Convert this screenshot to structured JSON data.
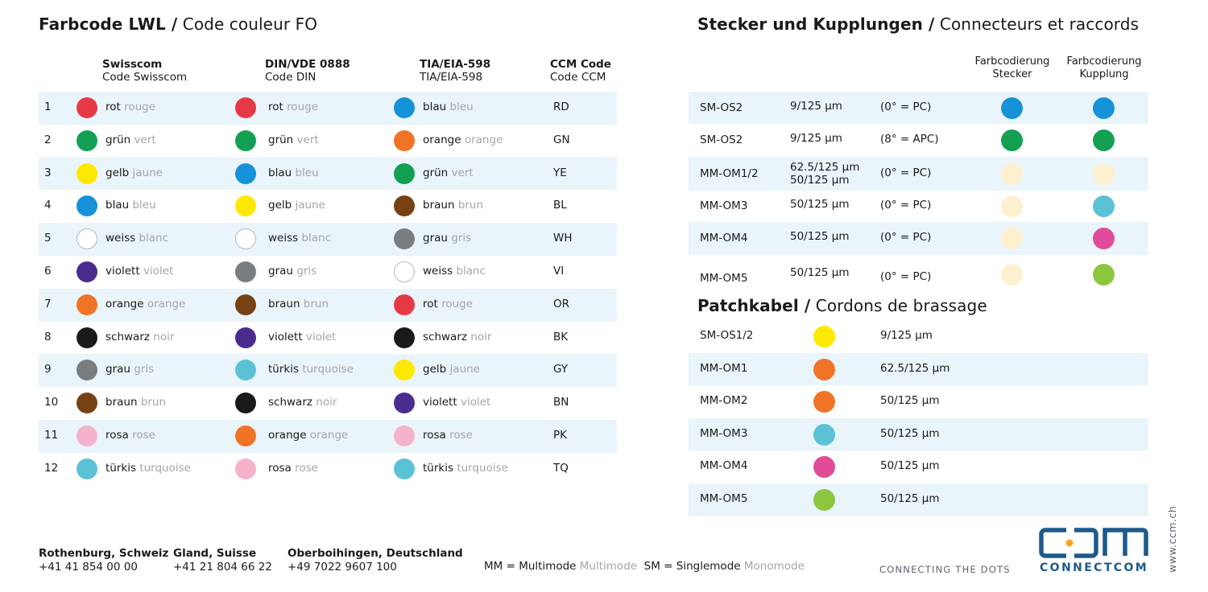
{
  "left_section": {
    "title_bold": "Farbcode LWL /",
    "title_light": "Code couleur FO",
    "headers": [
      {
        "bold": "Swisscom",
        "sub": "Code Swisscom"
      },
      {
        "bold": "DIN/VDE 0888",
        "sub": "Code DIN"
      },
      {
        "bold": "TIA/EIA-598",
        "sub": "TIA/EIA-598"
      },
      {
        "bold": "CCM Code",
        "sub": "Code CCM"
      }
    ],
    "rows": [
      {
        "num": "1",
        "swisscom": {
          "de": "rot",
          "fr": "rouge",
          "color": "#e63946"
        },
        "din": {
          "de": "rot",
          "fr": "rouge",
          "color": "#e63946"
        },
        "tia": {
          "de": "blau",
          "fr": "bleu",
          "color": "#1592d8"
        },
        "ccm": "RD"
      },
      {
        "num": "2",
        "swisscom": {
          "de": "grün",
          "fr": "vert",
          "color": "#13a052"
        },
        "din": {
          "de": "grün",
          "fr": "vert",
          "color": "#13a052"
        },
        "tia": {
          "de": "orange",
          "fr": "orange",
          "color": "#f07326"
        },
        "ccm": "GN"
      },
      {
        "num": "3",
        "swisscom": {
          "de": "gelb",
          "fr": "jaune",
          "color": "#ffe800"
        },
        "din": {
          "de": "blau",
          "fr": "bleu",
          "color": "#1592d8"
        },
        "tia": {
          "de": "grün",
          "fr": "vert",
          "color": "#13a052"
        },
        "ccm": "YE"
      },
      {
        "num": "4",
        "swisscom": {
          "de": "blau",
          "fr": "bleu",
          "color": "#1592d8"
        },
        "din": {
          "de": "gelb",
          "fr": "jaune",
          "color": "#ffe800"
        },
        "tia": {
          "de": "braun",
          "fr": "brun",
          "color": "#774213"
        },
        "ccm": "BL"
      },
      {
        "num": "5",
        "swisscom": {
          "de": "weiss",
          "fr": "blanc",
          "color": "#ffffff"
        },
        "din": {
          "de": "weiss",
          "fr": "blanc",
          "color": "#ffffff"
        },
        "tia": {
          "de": "grau",
          "fr": "gris",
          "color": "#7a7d80"
        },
        "ccm": "WH"
      },
      {
        "num": "6",
        "swisscom": {
          "de": "violett",
          "fr": "violet",
          "color": "#4a2c8f"
        },
        "din": {
          "de": "grau",
          "fr": "gris",
          "color": "#7a7d80"
        },
        "tia": {
          "de": "weiss",
          "fr": "blanc",
          "color": "#ffffff"
        },
        "ccm": "VI"
      },
      {
        "num": "7",
        "swisscom": {
          "de": "orange",
          "fr": "orange",
          "color": "#f07326"
        },
        "din": {
          "de": "braun",
          "fr": "brun",
          "color": "#774213"
        },
        "tia": {
          "de": "rot",
          "fr": "rouge",
          "color": "#e63946"
        },
        "ccm": "OR"
      },
      {
        "num": "8",
        "swisscom": {
          "de": "schwarz",
          "fr": "noir",
          "color": "#1a1a1a"
        },
        "din": {
          "de": "violett",
          "fr": "violet",
          "color": "#4a2c8f"
        },
        "tia": {
          "de": "schwarz",
          "fr": "noir",
          "color": "#1a1a1a"
        },
        "ccm": "BK"
      },
      {
        "num": "9",
        "swisscom": {
          "de": "grau",
          "fr": "gris",
          "color": "#7a7d80"
        },
        "din": {
          "de": "türkis",
          "fr": "turquoise",
          "color": "#5bc2d6"
        },
        "tia": {
          "de": "gelb",
          "fr": "jaune",
          "color": "#ffe800"
        },
        "ccm": "GY"
      },
      {
        "num": "10",
        "swisscom": {
          "de": "braun",
          "fr": "brun",
          "color": "#774213"
        },
        "din": {
          "de": "schwarz",
          "fr": "noir",
          "color": "#1a1a1a"
        },
        "tia": {
          "de": "violett",
          "fr": "violet",
          "color": "#4a2c8f"
        },
        "ccm": "BN"
      },
      {
        "num": "11",
        "swisscom": {
          "de": "rosa",
          "fr": "rose",
          "color": "#f5b2cd"
        },
        "din": {
          "de": "orange",
          "fr": "orange",
          "color": "#f07326"
        },
        "tia": {
          "de": "rosa",
          "fr": "rose",
          "color": "#f5b2cd"
        },
        "ccm": "PK"
      },
      {
        "num": "12",
        "swisscom": {
          "de": "türkis",
          "fr": "turquoise",
          "color": "#5bc2d6"
        },
        "din": {
          "de": "rosa",
          "fr": "rose",
          "color": "#f5b2cd"
        },
        "tia": {
          "de": "türkis",
          "fr": "turquoise",
          "color": "#5bc2d6"
        },
        "ccm": "TQ"
      }
    ]
  },
  "right_section": {
    "title_bold": "Stecker und Kupplungen /",
    "title_light": "Connecteurs et raccords",
    "header_plug": [
      "Farbcodierung",
      "Stecker"
    ],
    "header_coupling": [
      "Farbcodierung",
      "Kupplung"
    ],
    "rows": [
      {
        "type": "SM-OS2",
        "fiber": [
          "9/125 µm"
        ],
        "polish": "(0° = PC)",
        "plug": "#1592d8",
        "coupling": "#1592d8"
      },
      {
        "type": "SM-OS2",
        "fiber": [
          "9/125 µm"
        ],
        "polish": "(8° = APC)",
        "plug": "#13a052",
        "coupling": "#13a052"
      },
      {
        "type": "MM-OM1/2",
        "fiber": [
          "62.5/125 µm",
          "50/125 µm"
        ],
        "polish": "(0° = PC)",
        "plug": "#fdf0cf",
        "coupling": "#fdf0cf"
      },
      {
        "type": "MM-OM3",
        "fiber": [
          "50/125 µm"
        ],
        "polish": "(0° = PC)",
        "plug": "#fdf0cf",
        "coupling": "#5bc2d6"
      },
      {
        "type": "MM-OM4",
        "fiber": [
          "50/125 µm"
        ],
        "polish": "(0° = PC)",
        "plug": "#fdf0cf",
        "coupling": "#e04c97"
      },
      {
        "type": "MM-OM5",
        "fiber": [
          "50/125 µm"
        ],
        "polish": "(0° = PC)",
        "plug": "#fdf0cf",
        "coupling": "#8cc63f"
      }
    ]
  },
  "patch_section": {
    "title_bold": "Patchkabel /",
    "title_light": "Cordons de brassage",
    "rows": [
      {
        "type": "SM-OS1/2",
        "color": "#ffe800",
        "fiber": "9/125 µm"
      },
      {
        "type": "MM-OM1",
        "color": "#f07326",
        "fiber": "62.5/125 µm"
      },
      {
        "type": "MM-OM2",
        "color": "#f07326",
        "fiber": "50/125 µm"
      },
      {
        "type": "MM-OM3",
        "color": "#5bc2d6",
        "fiber": "50/125 µm"
      },
      {
        "type": "MM-OM4",
        "color": "#e04c97",
        "fiber": "50/125 µm"
      },
      {
        "type": "MM-OM5",
        "color": "#8cc63f",
        "fiber": "50/125 µm"
      }
    ]
  },
  "footer": {
    "locations": [
      {
        "city": "Rothenburg, Schweiz",
        "phone": "+41 41 854 00 00"
      },
      {
        "city": "Gland, Suisse",
        "phone": "+41 21 804 66 22"
      },
      {
        "city": "Oberboihingen, Deutschland",
        "phone": "+49 7022 9607 100"
      }
    ],
    "legend_mm": "MM = Multimode",
    "legend_mm_fr": "Multimode",
    "legend_sm": "SM = Singlemode",
    "legend_sm_fr": "Monomode",
    "tagline": "CONNECTING THE DOTS",
    "brand": "CONNECTCOM",
    "url": "www.ccm.ch",
    "brand_color": "#1d5a8c",
    "accent_color": "#f7a823"
  }
}
